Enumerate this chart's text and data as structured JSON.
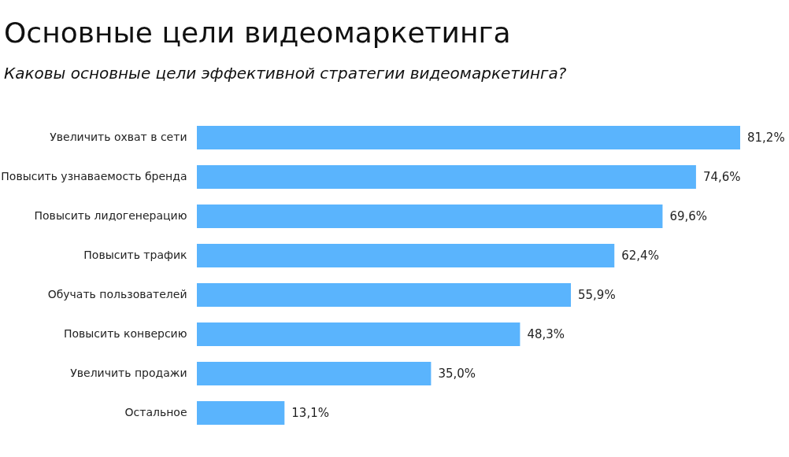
{
  "chart_data": {
    "type": "bar",
    "orientation": "horizontal",
    "title": "Основные цели видеомаркетинга",
    "subtitle": "Каковы основные цели эффективной стратегии видеомаркетинга?",
    "categories": [
      "Увеличить охват в сети",
      "Повысить узнаваемость бренда",
      "Повысить лидогенерацию",
      "Повысить трафик",
      "Обучать пользователей",
      "Повысить конверсию",
      "Увеличить продажи",
      "Остальное"
    ],
    "values": [
      81.2,
      74.6,
      69.6,
      62.4,
      55.9,
      48.3,
      35.0,
      13.1
    ],
    "value_labels": [
      "81,2%",
      "74,6%",
      "69,6%",
      "62,4%",
      "55,9%",
      "48,3%",
      "35,0%",
      "13,1%"
    ],
    "color": "#5ab4fd",
    "tick_labels": "y"
  }
}
